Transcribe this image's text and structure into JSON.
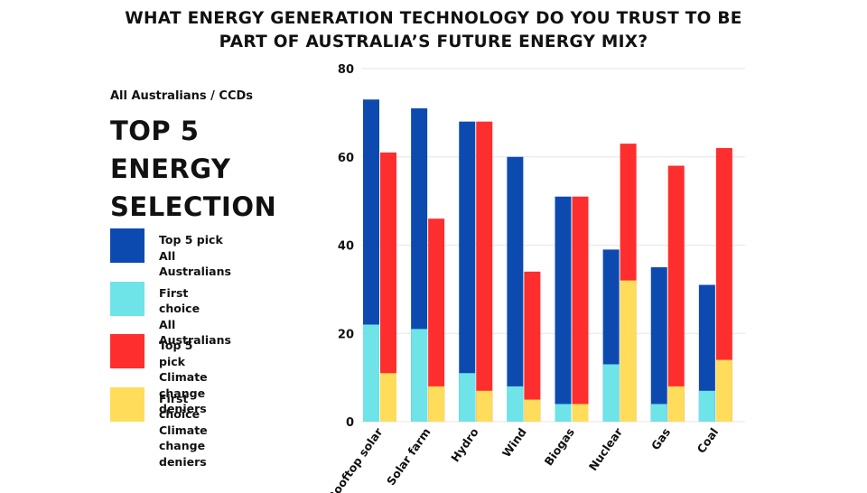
{
  "title_line1": "WHAT ENERGY GENERATION TECHNOLOGY DO YOU TRUST TO BE",
  "title_line2": "PART OF AUSTRALIA’S FUTURE ENERGY MIX?",
  "subtitle": "All Australians / CCDs",
  "heading": [
    "TOP 5",
    "ENERGY",
    "SELECTION"
  ],
  "legend": [
    {
      "line1": "Top 5 pick",
      "line2": "All Australians",
      "color": "#0d4ab0"
    },
    {
      "line1": "First choice",
      "line2": "All Australians",
      "color": "#6ee3e8"
    },
    {
      "line1": "Top 5 pick",
      "line2": "Climate change deniers",
      "color": "#ff2e2e"
    },
    {
      "line1": "First choice",
      "line2": "Climate change deniers",
      "color": "#ffdc5a"
    }
  ],
  "chart_data": {
    "type": "bar",
    "title": "WHAT ENERGY GENERATION TECHNOLOGY DO YOU TRUST TO BE PART OF AUSTRALIA’S FUTURE ENERGY MIX?",
    "categories": [
      "Rooftop solar",
      "Solar farm",
      "Hydro",
      "Wind",
      "Biogas",
      "Nuclear",
      "Gas",
      "Coal"
    ],
    "series": [
      {
        "name": "Top 5 pick - All Australians",
        "values": [
          73,
          71,
          68,
          60,
          51,
          39,
          35,
          31
        ],
        "color": "#0d4ab0"
      },
      {
        "name": "First choice - All Australians",
        "values": [
          22,
          21,
          11,
          8,
          4,
          13,
          4,
          7
        ],
        "color": "#6ee3e8"
      },
      {
        "name": "Top 5 pick - Climate change deniers",
        "values": [
          61,
          46,
          68,
          34,
          51,
          63,
          58,
          62
        ],
        "color": "#ff2e2e"
      },
      {
        "name": "First choice - Climate change deniers",
        "values": [
          11,
          8,
          7,
          5,
          4,
          32,
          8,
          14
        ],
        "color": "#ffdc5a"
      }
    ],
    "ylim": [
      0,
      80
    ],
    "yticks": [
      0,
      20,
      40,
      60,
      80
    ],
    "xlabel": "",
    "ylabel": "",
    "grid": true
  }
}
